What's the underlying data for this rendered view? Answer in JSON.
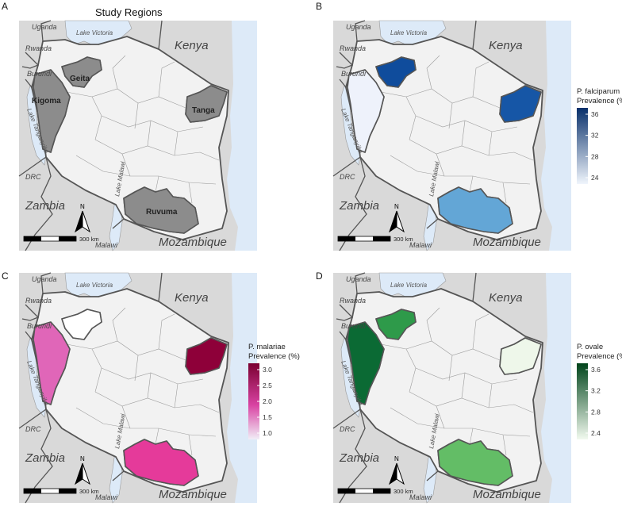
{
  "study_title": "Study Regions",
  "panels": [
    {
      "letter": "A",
      "id": "study",
      "regions": {
        "kigoma": "#8c8c8c",
        "geita": "#8c8c8c",
        "tanga": "#8c8c8c",
        "ruvuma": "#8c8c8c"
      },
      "region_labels": {
        "kigoma": "Kigoma",
        "geita": "Geita",
        "tanga": "Tanga",
        "ruvuma": "Ruvuma"
      }
    },
    {
      "letter": "B",
      "id": "falciparum",
      "regions": {
        "kigoma": "#eef2fb",
        "geita": "#0f4c9c",
        "tanga": "#1656a6",
        "ruvuma": "#63a6d6"
      }
    },
    {
      "letter": "C",
      "id": "malariae",
      "regions": {
        "kigoma": "#e066b8",
        "geita": "#ffffff",
        "tanga": "#8e0039",
        "ruvuma": "#e53a9a"
      }
    },
    {
      "letter": "D",
      "id": "ovale",
      "regions": {
        "kigoma": "#0b6a34",
        "geita": "#2e9a4a",
        "tanga": "#eef7ea",
        "ruvuma": "#63bd66"
      }
    }
  ],
  "labels": {
    "uganda": "Uganda",
    "kenya": "Kenya",
    "rwanda": "Rwanda",
    "burundi": "Burundi",
    "drc": "DRC",
    "zambia": "Zambia",
    "malawi": "Malawi",
    "mozambique": "Mozambique",
    "lake_victoria": "Lake Victoria",
    "lake_tanganyika": "Lake Tanganyika",
    "lake_malawi": "Lake Malawi"
  },
  "north_label": "N",
  "scale_label": "300 km",
  "legends": [
    {
      "panel": "B",
      "title_line1": "P. falciparum",
      "title_line2": "Prevalence (%)",
      "ticks": [
        "36",
        "32",
        "28",
        "24"
      ],
      "color_top": "#08306b",
      "color_bottom": "#f0f5fc"
    },
    {
      "panel": "C",
      "title_line1": "P. malariae",
      "title_line2": "Prevalence (%)",
      "ticks": [
        "3.0",
        "2.5",
        "2.0",
        "1.5",
        "1.0"
      ],
      "color_top": "#7a0030",
      "color_mid": "#d943a3",
      "color_bottom": "#f1eef7"
    },
    {
      "panel": "D",
      "title_line1": "P. ovale",
      "title_line2": "Prevalence (%)",
      "ticks": [
        "3.6",
        "3.2",
        "2.8",
        "2.4"
      ],
      "color_top": "#00441b",
      "color_bottom": "#f2faef"
    }
  ]
}
